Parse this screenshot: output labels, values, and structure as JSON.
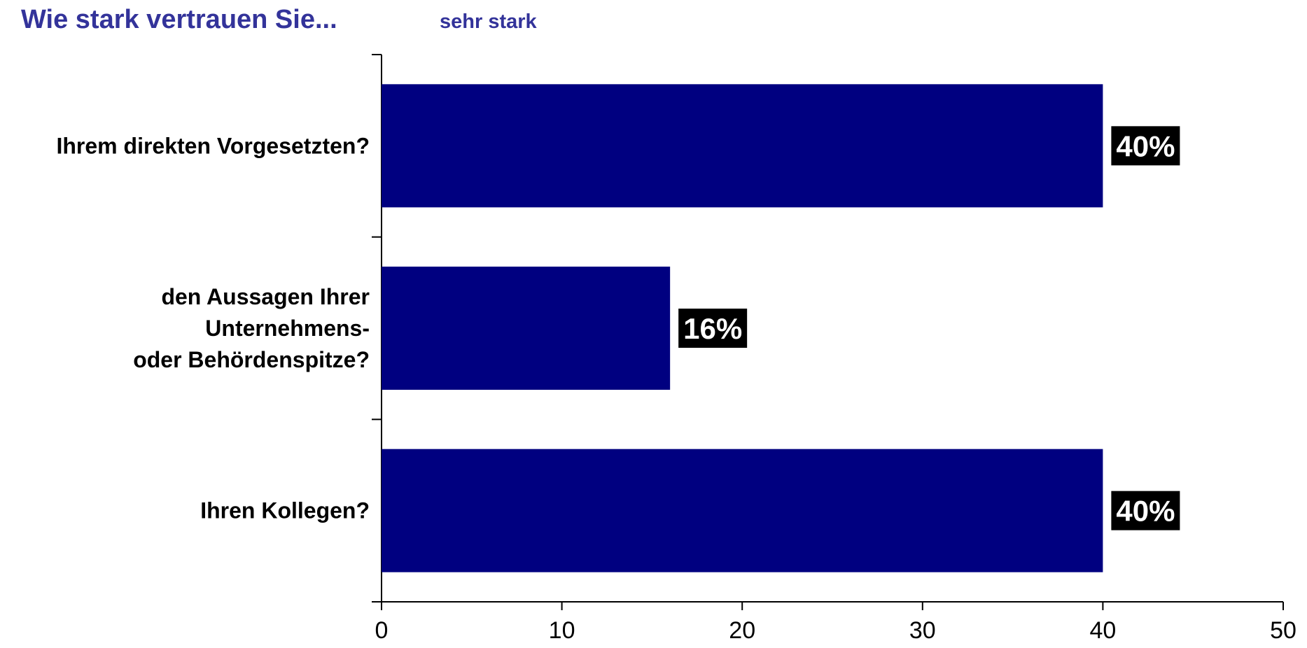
{
  "chart_data": {
    "type": "bar",
    "orientation": "horizontal",
    "title": "Wie stark vertrauen Sie...",
    "subtitle": "sehr stark",
    "categories": [
      [
        "Ihrem direkten Vorgesetzten?"
      ],
      [
        "den Aussagen Ihrer",
        "Unternehmens-",
        "oder Behördenspitze?"
      ],
      [
        "Ihren Kollegen?"
      ]
    ],
    "values": [
      40,
      16,
      40
    ],
    "data_labels": [
      "40%",
      "16%",
      "40%"
    ],
    "xlim": [
      0,
      50
    ],
    "xticks": [
      "0",
      "10",
      "20",
      "30",
      "40",
      "50"
    ],
    "grid": false,
    "legend": "none",
    "colors": {
      "bar": "#000080",
      "label_bg": "#000000",
      "label_text": "#ffffff",
      "title": "#33339a"
    }
  }
}
